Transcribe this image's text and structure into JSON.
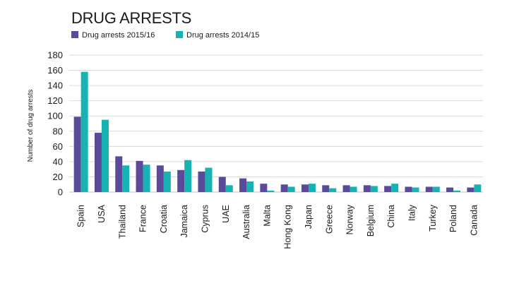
{
  "chart_data": {
    "type": "bar",
    "title": "DRUG ARRESTS",
    "ylabel": "Number of drug arrests",
    "xlabel": "",
    "ylim": [
      0,
      180
    ],
    "yticks": [
      0,
      20,
      40,
      60,
      80,
      100,
      120,
      140,
      160,
      180
    ],
    "grid": true,
    "legend_position": "top-left",
    "categories": [
      "Spain",
      "USA",
      "Thailand",
      "France",
      "Croatia",
      "Jamaica",
      "Cyprus",
      "UAE",
      "Australia",
      "Malta",
      "Hong Kong",
      "Japan",
      "Greece",
      "Norway",
      "Belgium",
      "China",
      "Italy",
      "Turkey",
      "Poland",
      "Canada"
    ],
    "series": [
      {
        "name": "Drug arrests 2015/16",
        "color": "#5b4a9a",
        "values": [
          99,
          78,
          47,
          41,
          35,
          29,
          27,
          20,
          18,
          11,
          10,
          10,
          9,
          9,
          9,
          8,
          7,
          7,
          6,
          6
        ]
      },
      {
        "name": "Drug arrests 2014/15",
        "color": "#17b3b3",
        "values": [
          158,
          95,
          35,
          36,
          27,
          42,
          32,
          9,
          14,
          2,
          7,
          11,
          5,
          7,
          8,
          11,
          6,
          7,
          2,
          10
        ]
      }
    ]
  }
}
